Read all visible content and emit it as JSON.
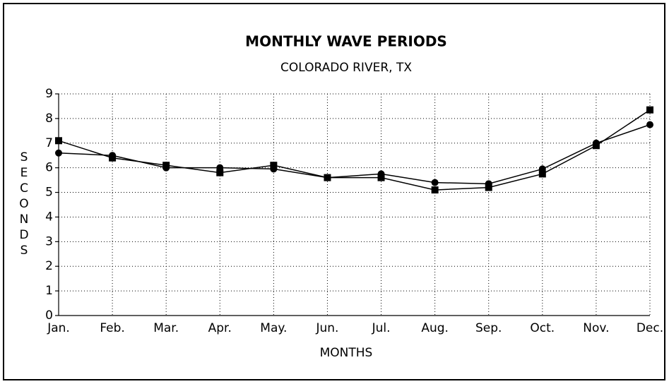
{
  "chart_data": {
    "type": "line",
    "title": "MONTHLY WAVE PERIODS",
    "subtitle": "COLORADO RIVER, TX",
    "x_label": "MONTHS",
    "y_label": "SECONDS",
    "categories": [
      "Jan.",
      "Feb.",
      "Mar.",
      "Apr.",
      "May.",
      "Jun.",
      "Jul.",
      "Aug.",
      "Sep.",
      "Oct.",
      "Nov.",
      "Dec."
    ],
    "series": [
      {
        "color": "#000000",
        "marker": "circle",
        "values": [
          6.6,
          6.5,
          6.0,
          6.0,
          5.95,
          5.6,
          5.75,
          5.4,
          5.35,
          5.95,
          7.0,
          7.75
        ]
      },
      {
        "color": "#000000",
        "marker": "square",
        "values": [
          7.1,
          6.4,
          6.1,
          5.8,
          6.1,
          5.6,
          5.6,
          5.1,
          5.2,
          5.75,
          6.9,
          8.35
        ]
      }
    ],
    "ylim": [
      0,
      9
    ],
    "yticks": [
      0,
      1,
      2,
      3,
      4,
      5,
      6,
      7,
      8,
      9
    ],
    "grid": true
  }
}
